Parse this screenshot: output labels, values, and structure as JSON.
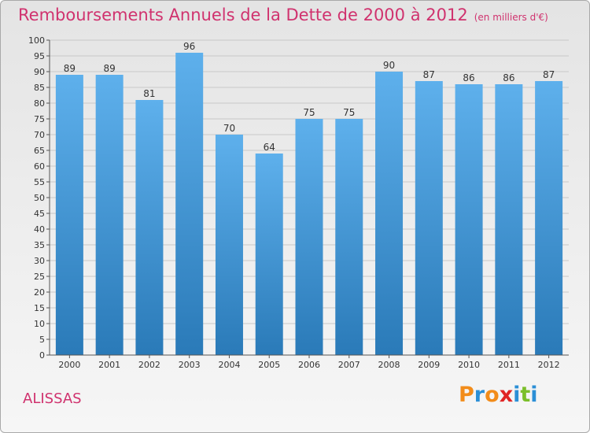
{
  "title": "Remboursements Annuels de la Dette de 2000 à 2012",
  "unit": "(en milliers d'€)",
  "commune": "ALISSAS",
  "logo": {
    "text": "Proxiti",
    "colors": [
      "#f28c1a",
      "#2b8fd6",
      "#f28c1a",
      "#e02525",
      "#2b8fd6",
      "#7bbf2a",
      "#2b8fd6"
    ]
  },
  "chart_data": {
    "type": "bar",
    "title": "Remboursements Annuels de la Dette de 2000 à 2012",
    "xlabel": "",
    "ylabel": "",
    "categories": [
      "2000",
      "2001",
      "2002",
      "2003",
      "2004",
      "2005",
      "2006",
      "2007",
      "2008",
      "2009",
      "2010",
      "2011",
      "2012"
    ],
    "values": [
      89,
      89,
      81,
      96,
      70,
      64,
      75,
      75,
      90,
      87,
      86,
      86,
      87
    ],
    "ylim": [
      0,
      100
    ],
    "ytick_step": 5,
    "grid": true,
    "bar_color_top": "#5eb0ec",
    "bar_color_bottom": "#2a7ab8",
    "grid_color": "#c8c8c8"
  }
}
